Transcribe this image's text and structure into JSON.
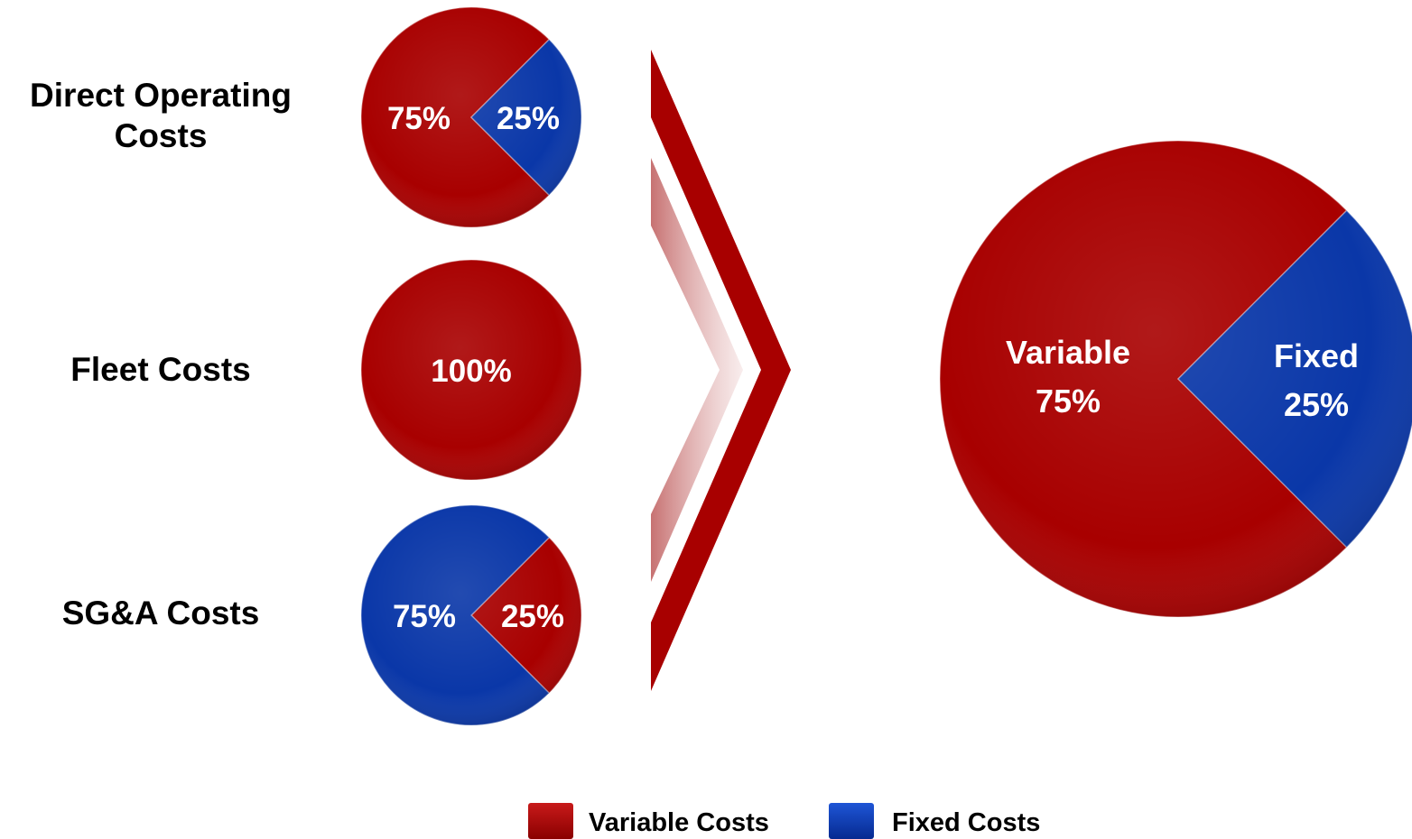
{
  "colors": {
    "variable": "#a80000",
    "fixed": "#0a37a8",
    "arrow": "#a80000"
  },
  "chart_data": [
    {
      "type": "pie",
      "category": [
        "Direct Operating",
        "Costs"
      ],
      "slices": [
        {
          "name": "Variable Costs",
          "value": 75,
          "label": "75%"
        },
        {
          "name": "Fixed Costs",
          "value": 25,
          "label": "25%"
        }
      ]
    },
    {
      "type": "pie",
      "category": [
        "Fleet Costs"
      ],
      "slices": [
        {
          "name": "Variable Costs",
          "value": 100,
          "label": "100%"
        }
      ]
    },
    {
      "type": "pie",
      "category": [
        "SG&A Costs"
      ],
      "slices": [
        {
          "name": "Variable Costs",
          "value": 25,
          "label": "25%"
        },
        {
          "name": "Fixed Costs",
          "value": 75,
          "label": "75%"
        }
      ]
    },
    {
      "type": "pie",
      "category": [],
      "slices": [
        {
          "name": "Variable Costs",
          "value": 75,
          "label": [
            "Variable",
            "75%"
          ]
        },
        {
          "name": "Fixed Costs",
          "value": 25,
          "label": [
            "Fixed",
            "25%"
          ]
        }
      ]
    }
  ],
  "legend": [
    {
      "label": "Variable Costs",
      "series": "variable"
    },
    {
      "label": "Fixed Costs",
      "series": "fixed"
    }
  ]
}
